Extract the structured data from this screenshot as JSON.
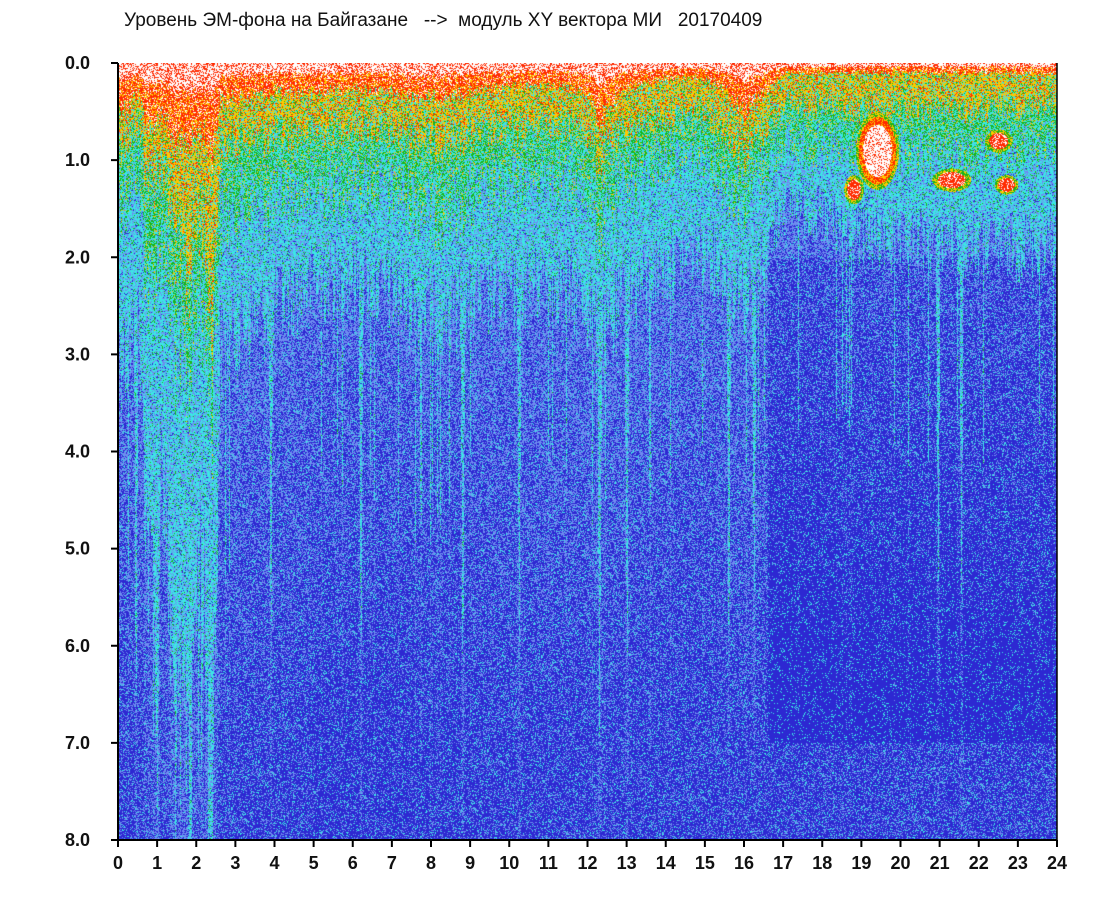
{
  "chart_data": {
    "type": "heatmap",
    "title": "Уровень ЭМ-фона на Байгазане   -->  модуль XY вектора МИ   20170409",
    "xlabel": "",
    "ylabel": "",
    "xlim": [
      0,
      24
    ],
    "ylim": [
      0,
      8
    ],
    "y_inverted": true,
    "x_ticks": [
      "0",
      "1",
      "2",
      "3",
      "4",
      "5",
      "6",
      "7",
      "8",
      "9",
      "10",
      "11",
      "12",
      "13",
      "14",
      "15",
      "16",
      "17",
      "18",
      "19",
      "20",
      "21",
      "22",
      "23",
      "24"
    ],
    "y_ticks": [
      "0.0",
      "1.0",
      "2.0",
      "3.0",
      "4.0",
      "5.0",
      "6.0",
      "7.0",
      "8.0"
    ],
    "colormap": [
      "#ffffff",
      "#ff2a00",
      "#ffc800",
      "#19b419",
      "#3ce6e6",
      "#6e8cf0",
      "#2d28d2"
    ],
    "colormap_note": "high → low amplitude",
    "high_level_boundary": {
      "hours": [
        0.2,
        0.5,
        0.8,
        1.1,
        1.5,
        1.8,
        2.1,
        2.4,
        2.6,
        3.0,
        4.0,
        5.0,
        6.0,
        7.0,
        8.0,
        9.0,
        10.0,
        11.0,
        12.0,
        12.3,
        13.0,
        14.0,
        15.0,
        15.5,
        16.0,
        16.5,
        17.0,
        18.0,
        19.0,
        20.0,
        21.0,
        22.0,
        23.0,
        24.0
      ],
      "red_depth": [
        0.45,
        0.3,
        0.7,
        0.5,
        0.9,
        0.8,
        0.7,
        0.9,
        0.4,
        0.35,
        0.3,
        0.3,
        0.25,
        0.3,
        0.35,
        0.3,
        0.25,
        0.2,
        0.3,
        0.6,
        0.25,
        0.15,
        0.15,
        0.25,
        0.5,
        0.3,
        0.1,
        0.1,
        0.1,
        0.1,
        0.1,
        0.1,
        0.1,
        0.1
      ],
      "yellow_depth": [
        0.8,
        0.6,
        1.3,
        1.0,
        1.9,
        2.2,
        1.5,
        2.6,
        0.9,
        0.8,
        0.75,
        0.7,
        0.65,
        0.7,
        0.8,
        0.75,
        0.7,
        0.6,
        0.7,
        1.0,
        0.7,
        0.55,
        0.5,
        0.7,
        0.9,
        0.7,
        0.4,
        0.45,
        0.5,
        0.5,
        0.45,
        0.5,
        0.45,
        0.4
      ],
      "green_depth": [
        1.4,
        1.1,
        2.5,
        1.8,
        3.0,
        3.2,
        2.4,
        3.4,
        1.6,
        1.5,
        1.4,
        1.3,
        1.2,
        1.3,
        1.5,
        1.4,
        1.3,
        1.1,
        1.3,
        1.8,
        1.2,
        1.0,
        0.9,
        1.2,
        1.4,
        1.1,
        0.8,
        0.9,
        1.0,
        1.0,
        0.9,
        1.0,
        0.9,
        0.8
      ],
      "cyan_depth": [
        3.0,
        2.6,
        5.5,
        3.8,
        7.5,
        6.5,
        5.0,
        7.8,
        3.0,
        2.8,
        2.5,
        2.3,
        2.2,
        2.4,
        2.6,
        2.5,
        2.4,
        2.2,
        2.5,
        3.0,
        2.4,
        2.1,
        1.9,
        2.2,
        2.4,
        2.0,
        1.4,
        1.6,
        1.8,
        1.9,
        1.8,
        1.9,
        1.9,
        1.8
      ]
    },
    "bright_column_hours": [
      0.45,
      1.0,
      1.85,
      2.35,
      3.9,
      6.2,
      8.8,
      10.25,
      12.3,
      13.0,
      15.6,
      16.25,
      20.95,
      21.55
    ],
    "blobs": [
      {
        "hour_center": 19.4,
        "level_center": 0.9,
        "hour_radius": 0.55,
        "level_radius": 0.4,
        "peak": "#ffffff"
      },
      {
        "hour_center": 21.3,
        "level_center": 1.2,
        "hour_radius": 0.5,
        "level_radius": 0.12,
        "peak": "#ff2a00"
      },
      {
        "hour_center": 22.5,
        "level_center": 0.8,
        "hour_radius": 0.35,
        "level_radius": 0.12,
        "peak": "#ff2a00"
      },
      {
        "hour_center": 22.7,
        "level_center": 1.25,
        "hour_radius": 0.3,
        "level_radius": 0.1,
        "peak": "#ff2a00"
      },
      {
        "hour_center": 18.8,
        "level_center": 1.3,
        "hour_radius": 0.25,
        "level_radius": 0.15,
        "peak": "#ff2a00"
      }
    ]
  }
}
